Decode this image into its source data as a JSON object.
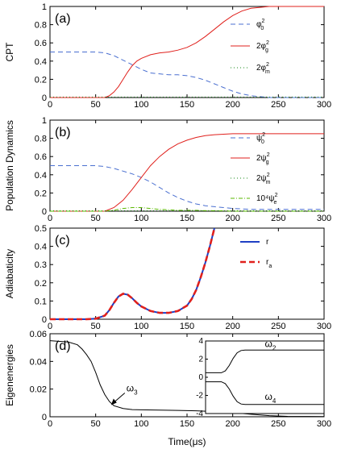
{
  "figure": {
    "xlabel": "Time(μs)",
    "x_ticks": [
      "0",
      "50",
      "100",
      "150",
      "200",
      "250",
      "300"
    ]
  },
  "chart_data": [
    {
      "panel": "(a)",
      "type": "line",
      "ylabel": "CPT",
      "xlim": [
        0,
        300
      ],
      "ylim": [
        0,
        1
      ],
      "y_ticks": [
        "0",
        "0.2",
        "0.4",
        "0.6",
        "0.8",
        "1"
      ],
      "legend_position": "right",
      "series": [
        {
          "legend_base": "φ",
          "legend_sub": "0",
          "legend_sup": "2",
          "color": "#4a6fd0",
          "dash": "6,4",
          "x": [
            0,
            50,
            60,
            70,
            80,
            90,
            100,
            110,
            120,
            130,
            140,
            150,
            160,
            170,
            180,
            190,
            200,
            210,
            220,
            230,
            240,
            250,
            300
          ],
          "y": [
            0.5,
            0.5,
            0.49,
            0.46,
            0.41,
            0.36,
            0.31,
            0.27,
            0.26,
            0.25,
            0.25,
            0.24,
            0.22,
            0.19,
            0.15,
            0.11,
            0.07,
            0.04,
            0.02,
            0.01,
            0.0,
            0.0,
            0.0
          ]
        },
        {
          "legend_base": "2φ",
          "legend_sub": "g",
          "legend_sup": "2",
          "color": "#e0201c",
          "dash": "",
          "x": [
            0,
            60,
            65,
            70,
            75,
            80,
            85,
            90,
            95,
            100,
            110,
            120,
            130,
            140,
            150,
            160,
            170,
            180,
            190,
            200,
            210,
            220,
            230,
            240,
            250,
            300
          ],
          "y": [
            0.0,
            0.0,
            0.02,
            0.06,
            0.12,
            0.2,
            0.28,
            0.35,
            0.4,
            0.43,
            0.47,
            0.49,
            0.5,
            0.52,
            0.55,
            0.6,
            0.67,
            0.75,
            0.83,
            0.9,
            0.95,
            0.98,
            0.99,
            1.0,
            1.0,
            1.0
          ]
        },
        {
          "legend_base": "2φ",
          "legend_sub": "m",
          "legend_sup": "2",
          "color": "#1a8a1a",
          "dash": "1,3",
          "x": [
            0,
            300
          ],
          "y": [
            0.005,
            0.005
          ]
        }
      ]
    },
    {
      "panel": "(b)",
      "type": "line",
      "ylabel": "Population Dynamics",
      "xlim": [
        0,
        300
      ],
      "ylim": [
        0,
        1
      ],
      "y_ticks": [
        "0",
        "0.2",
        "0.4",
        "0.6",
        "0.8",
        "1"
      ],
      "legend_position": "right",
      "series": [
        {
          "legend_base": "ψ",
          "legend_sub": "0",
          "legend_sup": "2",
          "color": "#4a6fd0",
          "dash": "6,4",
          "x": [
            0,
            50,
            60,
            70,
            80,
            90,
            100,
            110,
            120,
            130,
            140,
            150,
            160,
            170,
            180,
            190,
            200,
            220,
            250,
            300
          ],
          "y": [
            0.5,
            0.5,
            0.49,
            0.47,
            0.44,
            0.41,
            0.37,
            0.32,
            0.26,
            0.2,
            0.15,
            0.11,
            0.08,
            0.06,
            0.05,
            0.04,
            0.03,
            0.02,
            0.02,
            0.02
          ]
        },
        {
          "legend_base": "2ψ",
          "legend_sub": "g",
          "legend_sup": "2",
          "color": "#e0201c",
          "dash": "",
          "x": [
            0,
            60,
            70,
            80,
            90,
            100,
            110,
            120,
            130,
            140,
            150,
            160,
            170,
            180,
            190,
            200,
            220,
            250,
            300
          ],
          "y": [
            0.0,
            0.0,
            0.04,
            0.12,
            0.24,
            0.37,
            0.5,
            0.6,
            0.68,
            0.74,
            0.78,
            0.81,
            0.83,
            0.84,
            0.845,
            0.85,
            0.85,
            0.85,
            0.85
          ]
        },
        {
          "legend_base": "2ψ",
          "legend_sub": "m",
          "legend_sup": "2",
          "color": "#1a8a1a",
          "dash": "1,3",
          "x": [
            0,
            300
          ],
          "y": [
            0.005,
            0.005
          ]
        },
        {
          "legend_base": "10⁴ψ",
          "legend_sub": "e",
          "legend_sup": "2",
          "color": "#5ab800",
          "dash": "5,2,1,2",
          "x": [
            0,
            60,
            70,
            80,
            90,
            100,
            110,
            120,
            130,
            140,
            150,
            160,
            170,
            180,
            200,
            300
          ],
          "y": [
            0.0,
            0.0,
            0.01,
            0.03,
            0.04,
            0.04,
            0.03,
            0.02,
            0.015,
            0.01,
            0.01,
            0.01,
            0.005,
            0.005,
            0.0,
            0.0
          ]
        }
      ]
    },
    {
      "panel": "(c)",
      "type": "line",
      "ylabel": "Adiabaticity",
      "xlim": [
        0,
        300
      ],
      "ylim": [
        0,
        0.5
      ],
      "y_ticks": [
        "0",
        "0.1",
        "0.2",
        "0.3",
        "0.4",
        "0.5"
      ],
      "legend_position": "top-right",
      "series": [
        {
          "legend_base": "r",
          "legend_sub": "",
          "legend_sup": "",
          "color": "#1f3fc4",
          "dash": "",
          "x": [
            0,
            40,
            50,
            60,
            65,
            70,
            75,
            80,
            85,
            90,
            95,
            100,
            110,
            120,
            130,
            140,
            150,
            155,
            160,
            165,
            170,
            175,
            180
          ],
          "y": [
            0.0,
            0.0,
            0.003,
            0.02,
            0.05,
            0.09,
            0.125,
            0.14,
            0.135,
            0.115,
            0.09,
            0.07,
            0.045,
            0.035,
            0.035,
            0.045,
            0.075,
            0.11,
            0.16,
            0.23,
            0.31,
            0.4,
            0.5
          ]
        },
        {
          "legend_base": "r",
          "legend_sub": "a",
          "legend_sup": "",
          "color": "#e0201c",
          "dash": "7,4",
          "x": [
            0,
            40,
            50,
            60,
            65,
            70,
            75,
            80,
            85,
            90,
            95,
            100,
            110,
            120,
            130,
            140,
            150,
            155,
            160,
            165,
            170,
            175,
            180
          ],
          "y": [
            0.0,
            0.0,
            0.003,
            0.02,
            0.05,
            0.09,
            0.125,
            0.14,
            0.135,
            0.115,
            0.09,
            0.07,
            0.045,
            0.035,
            0.035,
            0.045,
            0.075,
            0.11,
            0.16,
            0.23,
            0.31,
            0.4,
            0.5
          ]
        }
      ]
    },
    {
      "panel": "(d)",
      "type": "line",
      "ylabel": "Eigenenergies",
      "xlim": [
        0,
        300
      ],
      "ylim": [
        0,
        0.06
      ],
      "y_ticks": [
        "0",
        "0.02",
        "0.04",
        "0.06"
      ],
      "series": [
        {
          "name": "ω",
          "label_sub": "3",
          "color": "#000000",
          "dash": "",
          "x": [
            0,
            20,
            30,
            35,
            40,
            45,
            50,
            55,
            60,
            65,
            70,
            80,
            90,
            100,
            120,
            140,
            160,
            180,
            200,
            220,
            240,
            260,
            300
          ],
          "y": [
            0.055,
            0.054,
            0.052,
            0.049,
            0.045,
            0.04,
            0.032,
            0.023,
            0.016,
            0.011,
            0.008,
            0.006,
            0.0052,
            0.005,
            0.0048,
            0.0046,
            0.0043,
            0.0038,
            0.003,
            0.0018,
            0.0008,
            0.0003,
            0.0001
          ]
        }
      ],
      "annotation": {
        "base": "ω",
        "sub": "3",
        "arrow_to": [
          66,
          0.009
        ]
      },
      "inset": {
        "xlim": [
          0,
          300
        ],
        "ylim": [
          -4,
          4
        ],
        "y_ticks": [
          "4",
          "2",
          "0",
          "-2",
          "-4"
        ],
        "series": [
          {
            "name": "ω",
            "label_sub": "2",
            "color": "#000000",
            "x": [
              0,
              40,
              50,
              60,
              70,
              80,
              90,
              100,
              300
            ],
            "y": [
              0.5,
              0.5,
              0.7,
              1.3,
              2.1,
              2.7,
              2.95,
              3.0,
              3.0
            ]
          },
          {
            "name": "ω",
            "label_sub": "4",
            "color": "#000000",
            "x": [
              0,
              40,
              50,
              60,
              70,
              80,
              90,
              100,
              300
            ],
            "y": [
              -0.5,
              -0.5,
              -0.7,
              -1.3,
              -2.1,
              -2.7,
              -2.95,
              -3.0,
              -3.0
            ]
          }
        ]
      }
    }
  ]
}
